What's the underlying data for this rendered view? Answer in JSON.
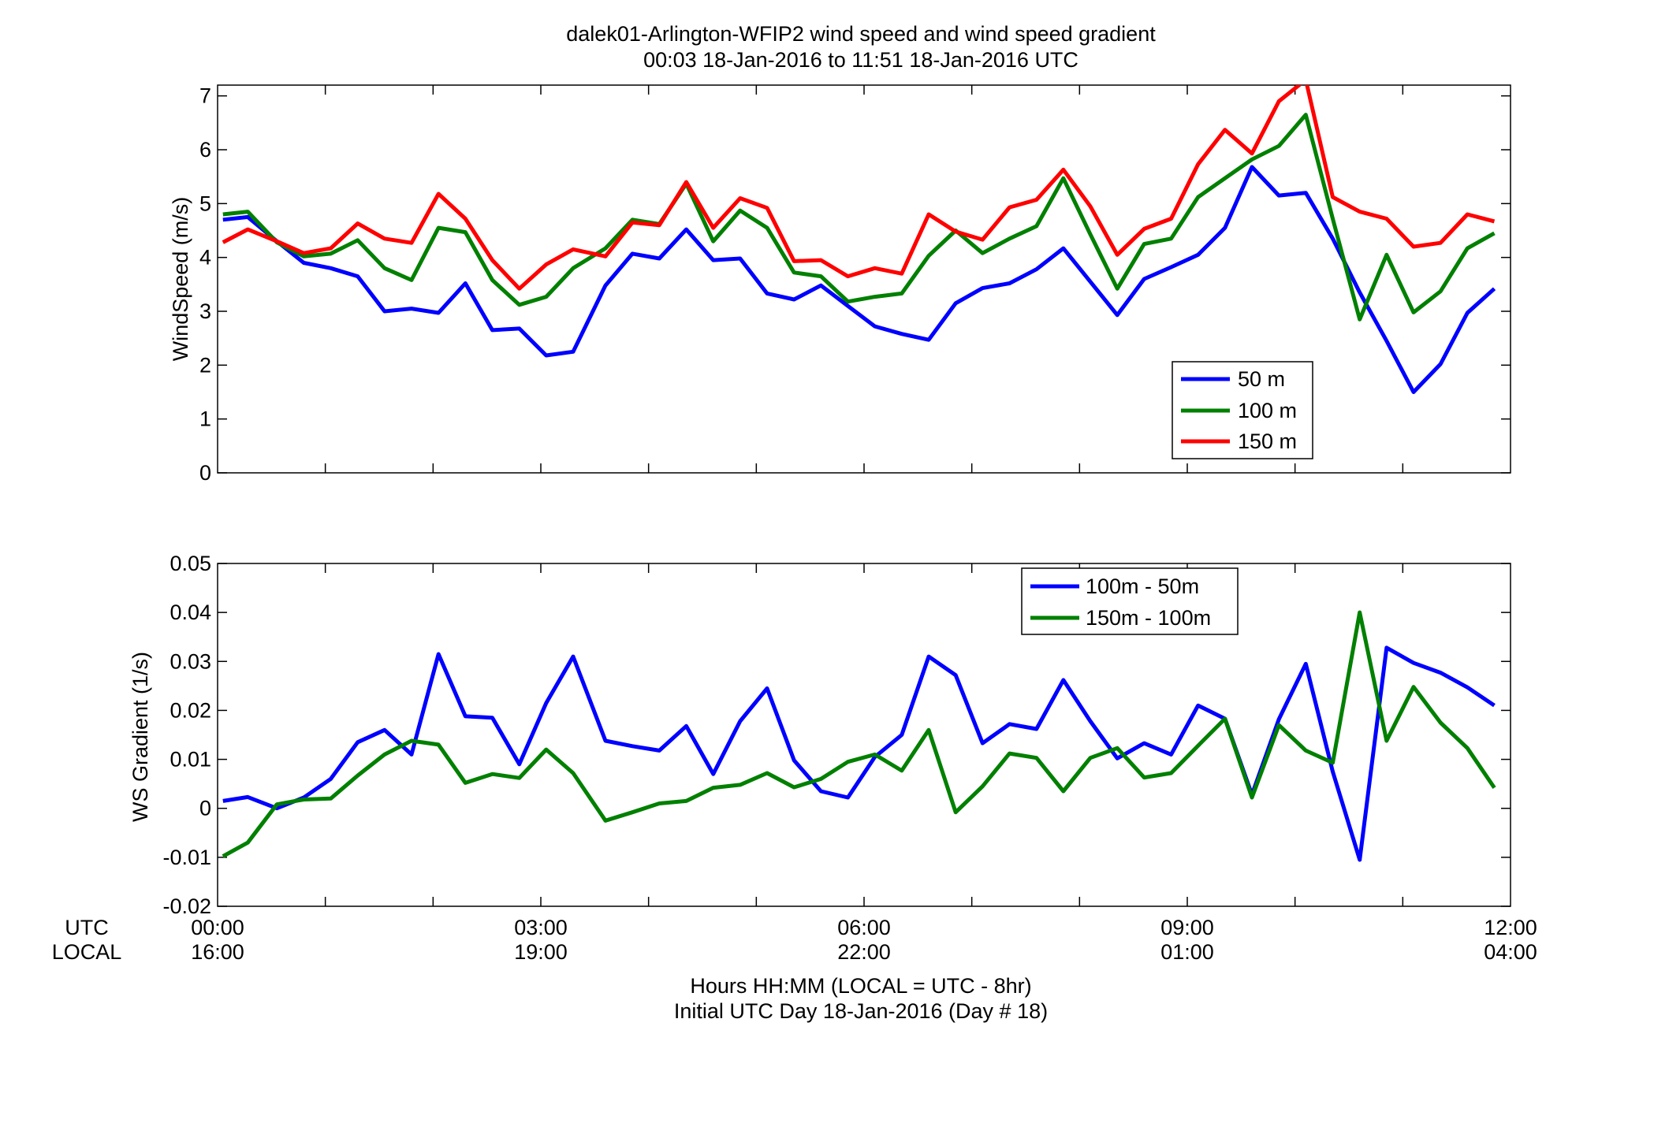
{
  "title": {
    "line1": "dalek01-Arlington-WFIP2  wind speed and wind speed gradient",
    "line2": "00:03 18-Jan-2016 to 11:51 18-Jan-2016  UTC"
  },
  "xaxis": {
    "utc_row_label": "UTC",
    "local_row_label": "LOCAL",
    "utc_ticks": [
      "00:00",
      "03:00",
      "06:00",
      "09:00",
      "12:00"
    ],
    "local_ticks": [
      "16:00",
      "19:00",
      "22:00",
      "01:00",
      "04:00"
    ],
    "label_line1": "Hours HH:MM  (LOCAL = UTC - 8hr)",
    "label_line2": "Initial UTC Day 18-Jan-2016 (Day # 18)"
  },
  "chart_data": [
    {
      "type": "line",
      "ylabel": "WindSpeed (m/s)",
      "xlim_hours": [
        0,
        12
      ],
      "ylim": [
        0,
        7.2
      ],
      "yticks": [
        0,
        1,
        2,
        3,
        4,
        5,
        6,
        7
      ],
      "grid": false,
      "legend_position": "right",
      "x_hours": [
        0.05,
        0.28,
        0.55,
        0.8,
        1.05,
        1.3,
        1.55,
        1.8,
        2.05,
        2.3,
        2.55,
        2.8,
        3.05,
        3.3,
        3.6,
        3.85,
        4.1,
        4.35,
        4.6,
        4.85,
        5.1,
        5.35,
        5.6,
        5.85,
        6.1,
        6.35,
        6.6,
        6.85,
        7.1,
        7.35,
        7.6,
        7.85,
        8.1,
        8.35,
        8.6,
        8.85,
        9.1,
        9.35,
        9.6,
        9.85,
        10.1,
        10.35,
        10.6,
        10.85,
        11.1,
        11.35,
        11.6,
        11.85
      ],
      "series": [
        {
          "name": "50 m",
          "color": "#0000ff",
          "values": [
            4.7,
            4.75,
            4.3,
            3.9,
            3.8,
            3.65,
            3.0,
            3.05,
            2.97,
            3.52,
            2.65,
            2.68,
            2.18,
            2.25,
            3.48,
            4.07,
            3.98,
            4.52,
            3.95,
            3.98,
            3.33,
            3.22,
            3.48,
            3.1,
            2.72,
            2.58,
            2.47,
            3.15,
            3.43,
            3.52,
            3.78,
            4.17,
            3.55,
            2.93,
            3.6,
            3.82,
            4.05,
            4.55,
            5.68,
            5.15,
            5.2,
            4.35,
            3.35,
            2.45,
            1.5,
            2.02,
            2.97,
            3.42
          ]
        },
        {
          "name": "100 m",
          "color": "#008000",
          "values": [
            4.8,
            4.85,
            4.28,
            4.02,
            4.07,
            4.32,
            3.8,
            3.58,
            4.55,
            4.47,
            3.58,
            3.12,
            3.27,
            3.8,
            4.17,
            4.7,
            4.62,
            5.37,
            4.3,
            4.87,
            4.55,
            3.72,
            3.65,
            3.18,
            3.27,
            3.33,
            4.03,
            4.5,
            4.08,
            4.35,
            4.58,
            5.47,
            4.43,
            3.42,
            4.25,
            4.35,
            5.12,
            5.47,
            5.82,
            6.07,
            6.65,
            4.72,
            2.85,
            4.05,
            2.98,
            3.37,
            4.17,
            4.45
          ]
        },
        {
          "name": "150 m",
          "color": "#ff0000",
          "values": [
            4.28,
            4.52,
            4.3,
            4.08,
            4.17,
            4.63,
            4.35,
            4.27,
            5.18,
            4.72,
            3.95,
            3.42,
            3.87,
            4.15,
            4.02,
            4.65,
            4.6,
            5.4,
            4.55,
            5.1,
            4.92,
            3.93,
            3.95,
            3.65,
            3.8,
            3.7,
            4.8,
            4.48,
            4.33,
            4.93,
            5.07,
            5.63,
            4.95,
            4.05,
            4.53,
            4.72,
            5.73,
            6.37,
            5.93,
            6.9,
            7.3,
            5.12,
            4.85,
            4.72,
            4.2,
            4.27,
            4.8,
            4.67
          ]
        }
      ]
    },
    {
      "type": "line",
      "ylabel": "WS Gradient (1/s)",
      "xlim_hours": [
        0,
        12
      ],
      "ylim": [
        -0.02,
        0.05
      ],
      "yticks": [
        -0.02,
        -0.01,
        0,
        0.01,
        0.02,
        0.03,
        0.04,
        0.05
      ],
      "ytick_labels": [
        "-0.02",
        "-0.01",
        "0",
        "0.01",
        "0.02",
        "0.03",
        "0.04",
        "0.05"
      ],
      "grid": false,
      "legend_position": "top-center",
      "x_hours": [
        0.05,
        0.28,
        0.55,
        0.8,
        1.05,
        1.3,
        1.55,
        1.8,
        2.05,
        2.3,
        2.55,
        2.8,
        3.05,
        3.3,
        3.6,
        3.85,
        4.1,
        4.35,
        4.6,
        4.85,
        5.1,
        5.35,
        5.6,
        5.85,
        6.1,
        6.35,
        6.6,
        6.85,
        7.1,
        7.35,
        7.6,
        7.85,
        8.1,
        8.35,
        8.6,
        8.85,
        9.1,
        9.35,
        9.6,
        9.85,
        10.1,
        10.35,
        10.6,
        10.85,
        11.1,
        11.35,
        11.6,
        11.85
      ],
      "series": [
        {
          "name": "100m - 50m",
          "color": "#0000ff",
          "values": [
            0.0015,
            0.0023,
            0.0,
            0.0022,
            0.006,
            0.0135,
            0.016,
            0.011,
            0.0315,
            0.0188,
            0.0185,
            0.009,
            0.0215,
            0.031,
            0.0138,
            0.0127,
            0.0118,
            0.0168,
            0.007,
            0.0178,
            0.0245,
            0.0098,
            0.0035,
            0.0022,
            0.0105,
            0.015,
            0.031,
            0.0272,
            0.0133,
            0.0172,
            0.0162,
            0.0262,
            0.0178,
            0.0102,
            0.0133,
            0.011,
            0.021,
            0.0183,
            0.0028,
            0.0182,
            0.0295,
            0.0075,
            -0.0105,
            0.0328,
            0.0297,
            0.0277,
            0.0247,
            0.021
          ]
        },
        {
          "name": "150m - 100m",
          "color": "#008000",
          "values": [
            -0.0098,
            -0.007,
            0.0008,
            0.0018,
            0.002,
            0.0067,
            0.011,
            0.0138,
            0.013,
            0.0052,
            0.007,
            0.0062,
            0.012,
            0.0072,
            -0.0025,
            -0.0008,
            0.001,
            0.0015,
            0.0042,
            0.0048,
            0.0072,
            0.0043,
            0.006,
            0.0095,
            0.011,
            0.0077,
            0.016,
            -0.0008,
            0.0045,
            0.0112,
            0.0103,
            0.0035,
            0.0103,
            0.0123,
            0.0063,
            0.0072,
            0.0128,
            0.0183,
            0.0022,
            0.017,
            0.0118,
            0.0093,
            0.04,
            0.0138,
            0.0248,
            0.0175,
            0.0123,
            0.0042
          ]
        }
      ]
    }
  ]
}
